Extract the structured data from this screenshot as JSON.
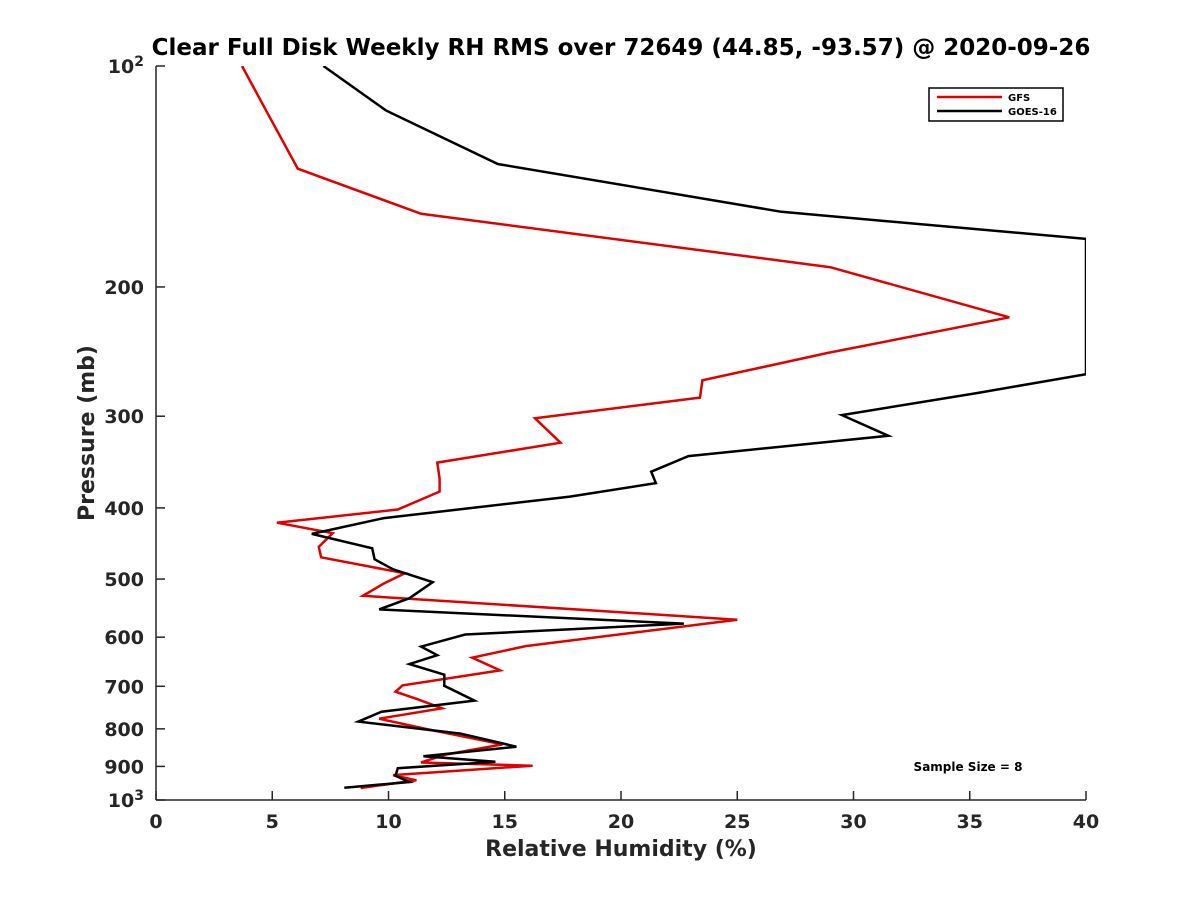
{
  "chart_data": {
    "type": "line",
    "title": "Clear Full Disk Weekly RH RMS over 72649 (44.85, -93.57) @ 2020-09-26",
    "xlabel": "Relative Humidity (%)",
    "ylabel": "Pressure (mb)",
    "xlim": [
      0,
      40
    ],
    "ylim": [
      100,
      1000
    ],
    "yscale": "log",
    "y_reversed": true,
    "grid": false,
    "legend_position": "top-right",
    "x_ticks": [
      0,
      5,
      10,
      15,
      20,
      25,
      30,
      35,
      40
    ],
    "x_tick_labels": [
      "0",
      "5",
      "10",
      "15",
      "20",
      "25",
      "30",
      "35",
      "40"
    ],
    "y_ticks": [
      200,
      300,
      400,
      500,
      600,
      700,
      800,
      900
    ],
    "y_tick_labels": [
      "200",
      "300",
      "400",
      "500",
      "600",
      "700",
      "800",
      "900"
    ],
    "y_extreme_labels": [
      {
        "value": 100,
        "base": "10",
        "exp": "2"
      },
      {
        "value": 1000,
        "base": "10",
        "exp": "3"
      }
    ],
    "annotation": "Sample Size = 8",
    "series": [
      {
        "name": "GFS",
        "color": "#e00000",
        "x": [
          3.7,
          4.8,
          6.1,
          11.4,
          29,
          36.7,
          28.9,
          23.5,
          23.4,
          16.3,
          17.4,
          12.1,
          12.2,
          12.2,
          10.4,
          5.2,
          7.6,
          7.0,
          7.1,
          10.7,
          9.8,
          8.9,
          25.0,
          15.9,
          13.6,
          14.8,
          10.6,
          10.3,
          11.2,
          12.3,
          9.6,
          11.6,
          14.9,
          12.4,
          11.4,
          16.2,
          10.2,
          11.2,
          8.8
        ],
        "y": [
          100,
          116,
          138,
          159,
          188,
          220,
          246,
          268,
          283,
          302,
          326,
          347,
          365,
          380,
          402,
          419,
          433,
          452,
          467,
          491,
          507,
          527,
          568,
          617,
          640,
          666,
          698,
          712,
          728,
          750,
          775,
          800,
          840,
          868,
          889,
          898,
          925,
          940,
          963
        ]
      },
      {
        "name": "GOES-16",
        "color": "#000000",
        "x": [
          7.2,
          9.9,
          14.7,
          26.9,
          40,
          40,
          35.3,
          29.5,
          31.5,
          22.9,
          21.3,
          21.5,
          17.8,
          9.8,
          6.7,
          9.3,
          9.4,
          10.2,
          11.9,
          10.9,
          9.6,
          22.7,
          13.3,
          11.4,
          12.1,
          10.9,
          12.4,
          12.4,
          13.7,
          9.7,
          8.7,
          13.1,
          15.5,
          11.5,
          14.6,
          10.4,
          10.3,
          10.9,
          8.1
        ],
        "y": [
          100,
          115,
          136,
          158,
          172,
          263,
          279,
          299,
          319,
          340,
          357,
          370,
          386,
          413,
          434,
          454,
          470,
          485,
          505,
          531,
          550,
          575,
          595,
          618,
          635,
          653,
          675,
          699,
          732,
          758,
          782,
          812,
          846,
          872,
          887,
          905,
          927,
          945,
          962
        ]
      }
    ]
  }
}
